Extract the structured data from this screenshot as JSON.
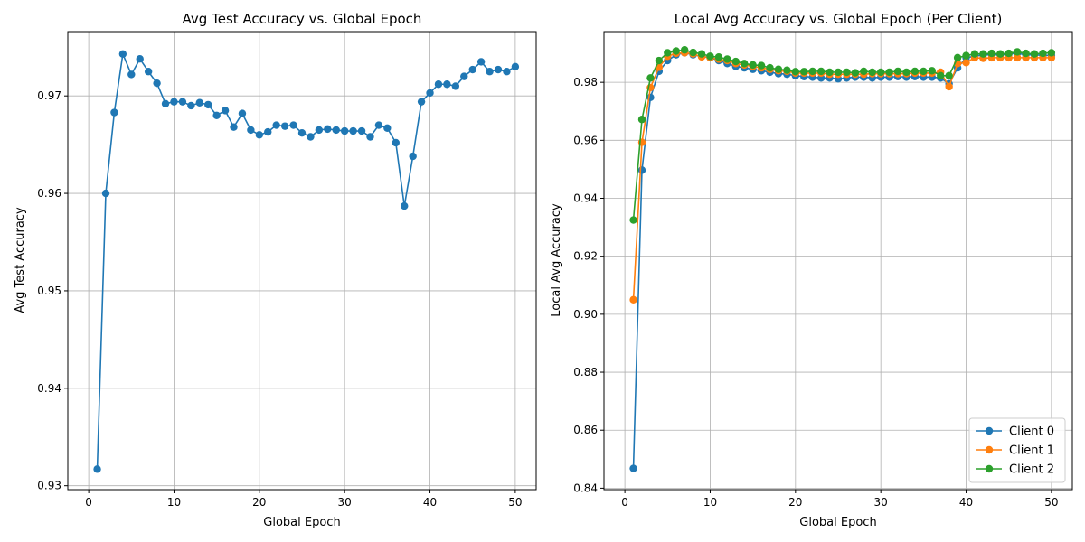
{
  "chart_data": [
    {
      "type": "line",
      "title": "Avg Test Accuracy vs. Global Epoch",
      "xlabel": "Global Epoch",
      "ylabel": "Avg Test Accuracy",
      "xlim": [
        -2.45,
        52.45
      ],
      "ylim": [
        0.9296,
        0.9766
      ],
      "xticks": [
        0,
        10,
        20,
        30,
        40,
        50
      ],
      "xtick_labels": [
        "0",
        "10",
        "20",
        "30",
        "40",
        "50"
      ],
      "yticks": [
        0.93,
        0.94,
        0.95,
        0.96,
        0.97
      ],
      "ytick_labels": [
        "0.93",
        "0.94",
        "0.95",
        "0.96",
        "0.97"
      ],
      "grid": true,
      "legend": null,
      "series": [
        {
          "name": "Avg Test Accuracy",
          "color": "#1f77b4",
          "x": [
            1,
            2,
            3,
            4,
            5,
            6,
            7,
            8,
            9,
            10,
            11,
            12,
            13,
            14,
            15,
            16,
            17,
            18,
            19,
            20,
            21,
            22,
            23,
            24,
            25,
            26,
            27,
            28,
            29,
            30,
            31,
            32,
            33,
            34,
            35,
            36,
            37,
            38,
            39,
            40,
            41,
            42,
            43,
            44,
            45,
            46,
            47,
            48,
            49,
            50
          ],
          "y": [
            0.9317,
            0.96,
            0.9683,
            0.9743,
            0.9722,
            0.9738,
            0.9725,
            0.9713,
            0.9692,
            0.9694,
            0.9694,
            0.969,
            0.9693,
            0.9691,
            0.968,
            0.9685,
            0.9668,
            0.9682,
            0.9665,
            0.966,
            0.9663,
            0.967,
            0.9669,
            0.967,
            0.9662,
            0.9658,
            0.9665,
            0.9666,
            0.9665,
            0.9664,
            0.9664,
            0.9664,
            0.9658,
            0.967,
            0.9667,
            0.9652,
            0.9587,
            0.9638,
            0.9694,
            0.9703,
            0.9712,
            0.9712,
            0.971,
            0.972,
            0.9727,
            0.9735,
            0.9725,
            0.9727,
            0.9725,
            0.973
          ]
        }
      ]
    },
    {
      "type": "line",
      "title": "Local Avg Accuracy vs. Global Epoch (Per Client)",
      "xlabel": "Global Epoch",
      "ylabel": "Local Avg Accuracy",
      "xlim": [
        -2.45,
        52.45
      ],
      "ylim": [
        0.8395,
        0.9975
      ],
      "xticks": [
        0,
        10,
        20,
        30,
        40,
        50
      ],
      "xtick_labels": [
        "0",
        "10",
        "20",
        "30",
        "40",
        "50"
      ],
      "yticks": [
        0.84,
        0.86,
        0.88,
        0.9,
        0.92,
        0.94,
        0.96,
        0.98
      ],
      "ytick_labels": [
        "0.84",
        "0.86",
        "0.88",
        "0.90",
        "0.92",
        "0.94",
        "0.96",
        "0.98"
      ],
      "grid": true,
      "legend": "lower-right",
      "series": [
        {
          "name": "Client 0",
          "color": "#1f77b4",
          "x": [
            1,
            2,
            3,
            4,
            5,
            6,
            7,
            8,
            9,
            10,
            11,
            12,
            13,
            14,
            15,
            16,
            17,
            18,
            19,
            20,
            21,
            22,
            23,
            24,
            25,
            26,
            27,
            28,
            29,
            30,
            31,
            32,
            33,
            34,
            35,
            36,
            37,
            38,
            39,
            40,
            41,
            42,
            43,
            44,
            45,
            46,
            47,
            48,
            49,
            50
          ],
          "y": [
            0.8468,
            0.9497,
            0.9748,
            0.9838,
            0.9875,
            0.9895,
            0.9902,
            0.9895,
            0.989,
            0.9885,
            0.9875,
            0.9865,
            0.9855,
            0.985,
            0.9845,
            0.984,
            0.9835,
            0.983,
            0.9828,
            0.9823,
            0.982,
            0.9818,
            0.9815,
            0.9815,
            0.9812,
            0.9815,
            0.9818,
            0.9818,
            0.9815,
            0.9818,
            0.9818,
            0.982,
            0.9818,
            0.982,
            0.9818,
            0.9818,
            0.9815,
            0.9795,
            0.985,
            0.9885,
            0.989,
            0.9895,
            0.9895,
            0.9895,
            0.9898,
            0.99,
            0.9895,
            0.9895,
            0.9893,
            0.9893
          ]
        },
        {
          "name": "Client 1",
          "color": "#ff7f0e",
          "x": [
            1,
            2,
            3,
            4,
            5,
            6,
            7,
            8,
            9,
            10,
            11,
            12,
            13,
            14,
            15,
            16,
            17,
            18,
            19,
            20,
            21,
            22,
            23,
            24,
            25,
            26,
            27,
            28,
            29,
            30,
            31,
            32,
            33,
            34,
            35,
            36,
            37,
            38,
            39,
            40,
            41,
            42,
            43,
            44,
            45,
            46,
            47,
            48,
            49,
            50
          ],
          "y": [
            0.905,
            0.9593,
            0.9782,
            0.9852,
            0.989,
            0.99,
            0.9902,
            0.9898,
            0.9888,
            0.9885,
            0.988,
            0.9875,
            0.9865,
            0.986,
            0.9855,
            0.985,
            0.9845,
            0.984,
            0.9838,
            0.9832,
            0.9832,
            0.9832,
            0.9832,
            0.9828,
            0.9828,
            0.9828,
            0.9828,
            0.9828,
            0.983,
            0.983,
            0.983,
            0.983,
            0.983,
            0.9832,
            0.9832,
            0.9832,
            0.9835,
            0.9785,
            0.9865,
            0.9868,
            0.9885,
            0.9883,
            0.9885,
            0.9885,
            0.9885,
            0.9885,
            0.9885,
            0.9885,
            0.9885,
            0.9885
          ]
        },
        {
          "name": "Client 2",
          "color": "#2ca02c",
          "x": [
            1,
            2,
            3,
            4,
            5,
            6,
            7,
            8,
            9,
            10,
            11,
            12,
            13,
            14,
            15,
            16,
            17,
            18,
            19,
            20,
            21,
            22,
            23,
            24,
            25,
            26,
            27,
            28,
            29,
            30,
            31,
            32,
            33,
            34,
            35,
            36,
            37,
            38,
            39,
            40,
            41,
            42,
            43,
            44,
            45,
            46,
            47,
            48,
            49,
            50
          ],
          "y": [
            0.9325,
            0.9672,
            0.9815,
            0.9875,
            0.9902,
            0.9908,
            0.9912,
            0.9903,
            0.9898,
            0.989,
            0.9887,
            0.988,
            0.9872,
            0.9865,
            0.986,
            0.9858,
            0.985,
            0.9845,
            0.9842,
            0.9837,
            0.9837,
            0.9838,
            0.9838,
            0.9835,
            0.9835,
            0.9835,
            0.9833,
            0.9838,
            0.9835,
            0.9835,
            0.9835,
            0.9838,
            0.9835,
            0.9838,
            0.9838,
            0.984,
            0.9823,
            0.9823,
            0.9885,
            0.9892,
            0.9898,
            0.9898,
            0.99,
            0.9898,
            0.99,
            0.9905,
            0.99,
            0.9898,
            0.99,
            0.9902
          ]
        }
      ]
    }
  ]
}
